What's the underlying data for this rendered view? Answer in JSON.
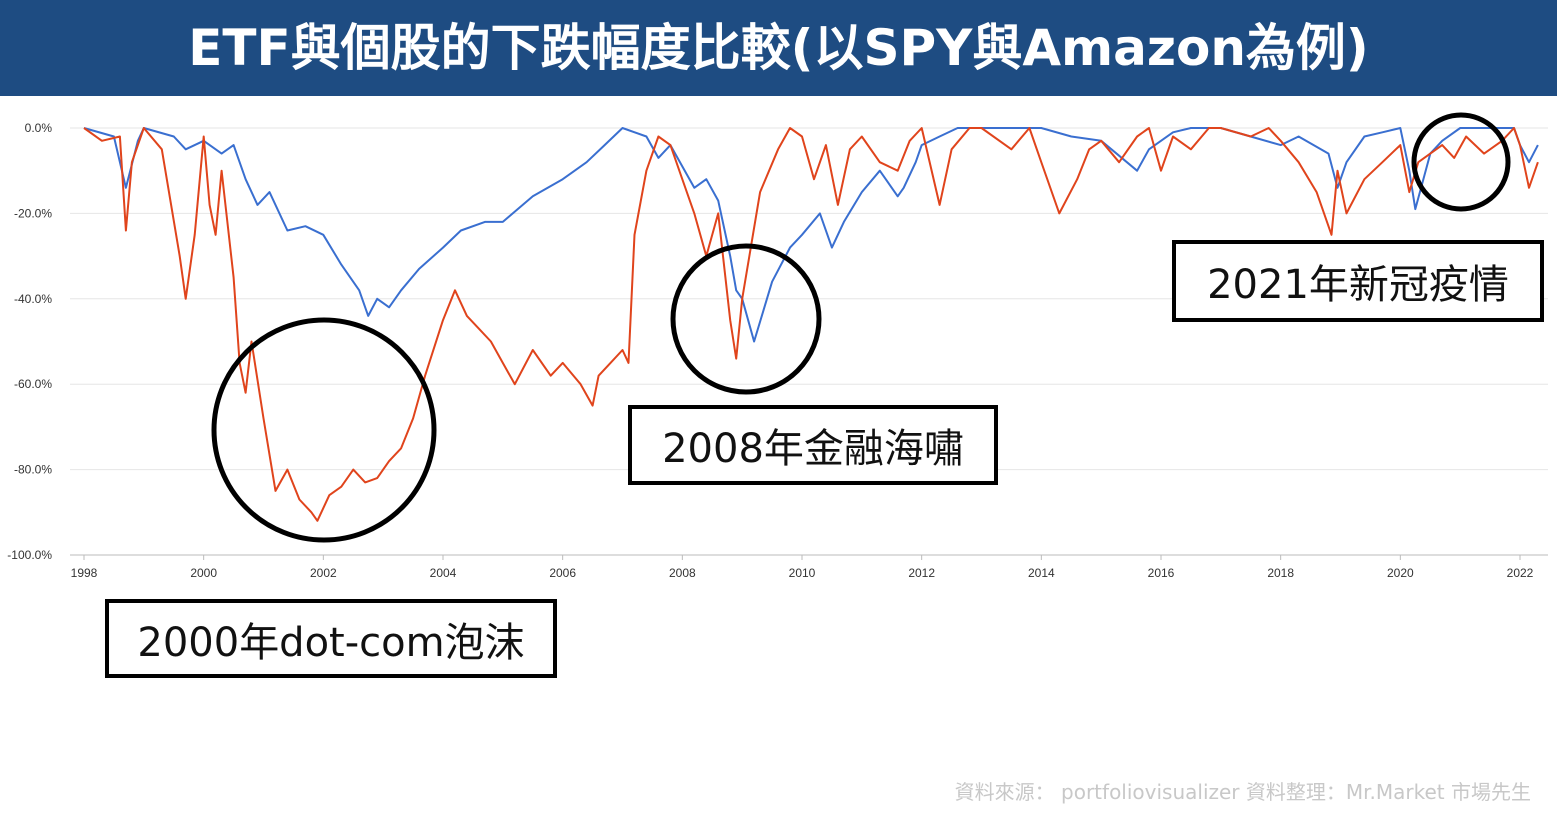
{
  "header": {
    "title": "ETF與個股的下跌幅度比較(以SPY與Amazon為例)"
  },
  "annotations": {
    "dotcom": "2000年dot-com泡沫",
    "gfc": "2008年金融海嘯",
    "covid": "2021年新冠疫情"
  },
  "footer": {
    "source": "資料來源： portfoliovisualizer  資料整理：Mr.Market 市場先生"
  },
  "colors": {
    "banner": "#1e4c82",
    "spy": "#3a6fd0",
    "amazon": "#e0441c",
    "grid": "#e6e6e6"
  },
  "chart_data": {
    "type": "line",
    "title": "",
    "xlabel": "",
    "ylabel": "",
    "xlim": [
      1998,
      2022.4
    ],
    "ylim": [
      -100,
      0
    ],
    "x_ticks": [
      "1998",
      "2000",
      "2002",
      "2004",
      "2006",
      "2008",
      "2010",
      "2012",
      "2014",
      "2016",
      "2018",
      "2020",
      "2022"
    ],
    "y_ticks": [
      "0.0%",
      "-20.0%",
      "-40.0%",
      "-60.0%",
      "-80.0%",
      "-100.0%"
    ],
    "grid": true,
    "series": [
      {
        "color": "#3a6fd0",
        "x": [
          1998,
          1998.5,
          1998.7,
          1998.9,
          1999,
          1999.5,
          1999.7,
          2000,
          2000.3,
          2000.5,
          2000.7,
          2000.9,
          2001.1,
          2001.4,
          2001.7,
          2002,
          2002.3,
          2002.6,
          2002.75,
          2002.9,
          2003.1,
          2003.3,
          2003.6,
          2004,
          2004.3,
          2004.7,
          2005,
          2005.5,
          2006,
          2006.4,
          2006.7,
          2007,
          2007.4,
          2007.6,
          2007.8,
          2008,
          2008.2,
          2008.4,
          2008.6,
          2008.8,
          2008.9,
          2009,
          2009.2,
          2009.5,
          2009.8,
          2010,
          2010.3,
          2010.5,
          2010.7,
          2011,
          2011.3,
          2011.6,
          2011.7,
          2011.9,
          2012,
          2012.3,
          2012.6,
          2013,
          2014,
          2014.5,
          2015,
          2015.6,
          2015.8,
          2016,
          2016.2,
          2016.5,
          2017,
          2018,
          2018.3,
          2018.8,
          2018.95,
          2019.1,
          2019.4,
          2019.7,
          2020,
          2020.15,
          2020.25,
          2020.5,
          2020.7,
          2021,
          2021.5,
          2021.9,
          2022,
          2022.15,
          2022.3
        ],
        "y": [
          0,
          -2,
          -14,
          -3,
          0,
          -2,
          -5,
          -3,
          -6,
          -4,
          -12,
          -18,
          -15,
          -24,
          -23,
          -25,
          -32,
          -38,
          -44,
          -40,
          -42,
          -38,
          -33,
          -28,
          -24,
          -22,
          -22,
          -16,
          -12,
          -8,
          -4,
          0,
          -2,
          -7,
          -4,
          -9,
          -14,
          -12,
          -17,
          -30,
          -38,
          -40,
          -50,
          -36,
          -28,
          -25,
          -20,
          -28,
          -22,
          -15,
          -10,
          -16,
          -14,
          -8,
          -4,
          -2,
          0,
          0,
          0,
          -2,
          -3,
          -10,
          -5,
          -3,
          -1,
          0,
          0,
          -4,
          -2,
          -6,
          -14,
          -8,
          -2,
          -1,
          0,
          -10,
          -19,
          -6,
          -3,
          0,
          0,
          0,
          -4,
          -8,
          -4
        ]
      },
      {
        "color": "#e0441c",
        "x": [
          1998,
          1998.3,
          1998.6,
          1998.7,
          1998.8,
          1999,
          1999.3,
          1999.6,
          1999.7,
          1999.85,
          2000,
          2000.1,
          2000.2,
          2000.3,
          2000.5,
          2000.6,
          2000.7,
          2000.8,
          2001,
          2001.2,
          2001.4,
          2001.6,
          2001.8,
          2001.9,
          2002.1,
          2002.3,
          2002.5,
          2002.7,
          2002.9,
          2003.1,
          2003.3,
          2003.5,
          2003.7,
          2004,
          2004.2,
          2004.4,
          2004.6,
          2004.8,
          2005,
          2005.2,
          2005.5,
          2005.8,
          2006,
          2006.3,
          2006.5,
          2006.6,
          2006.8,
          2007,
          2007.1,
          2007.2,
          2007.4,
          2007.6,
          2007.8,
          2008,
          2008.2,
          2008.4,
          2008.6,
          2008.8,
          2008.9,
          2009,
          2009.3,
          2009.6,
          2009.8,
          2010,
          2010.2,
          2010.4,
          2010.6,
          2010.8,
          2011,
          2011.3,
          2011.6,
          2011.8,
          2012,
          2012.3,
          2012.5,
          2012.8,
          2013,
          2013.5,
          2013.8,
          2014,
          2014.3,
          2014.6,
          2014.8,
          2015,
          2015.3,
          2015.6,
          2015.8,
          2016,
          2016.2,
          2016.5,
          2016.8,
          2017,
          2017.5,
          2017.8,
          2018,
          2018.3,
          2018.6,
          2018.85,
          2018.95,
          2019.1,
          2019.4,
          2019.7,
          2020,
          2020.15,
          2020.3,
          2020.5,
          2020.7,
          2020.9,
          2021.1,
          2021.4,
          2021.7,
          2021.9,
          2022,
          2022.15,
          2022.3
        ],
        "y": [
          0,
          -3,
          -2,
          -24,
          -8,
          0,
          -5,
          -30,
          -40,
          -25,
          -2,
          -18,
          -25,
          -10,
          -35,
          -55,
          -62,
          -50,
          -68,
          -85,
          -80,
          -87,
          -90,
          -92,
          -86,
          -84,
          -80,
          -83,
          -82,
          -78,
          -75,
          -68,
          -58,
          -45,
          -38,
          -44,
          -47,
          -50,
          -55,
          -60,
          -52,
          -58,
          -55,
          -60,
          -65,
          -58,
          -55,
          -52,
          -55,
          -25,
          -10,
          -2,
          -4,
          -12,
          -20,
          -30,
          -20,
          -45,
          -54,
          -40,
          -15,
          -5,
          0,
          -2,
          -12,
          -4,
          -18,
          -5,
          -2,
          -8,
          -10,
          -3,
          0,
          -18,
          -5,
          0,
          0,
          -5,
          0,
          -8,
          -20,
          -12,
          -5,
          -3,
          -8,
          -2,
          0,
          -10,
          -2,
          -5,
          0,
          0,
          -2,
          0,
          -3,
          -8,
          -15,
          -25,
          -10,
          -20,
          -12,
          -8,
          -4,
          -15,
          -8,
          -6,
          -4,
          -7,
          -2,
          -6,
          -3,
          0,
          -4,
          -14,
          -8
        ]
      }
    ]
  }
}
